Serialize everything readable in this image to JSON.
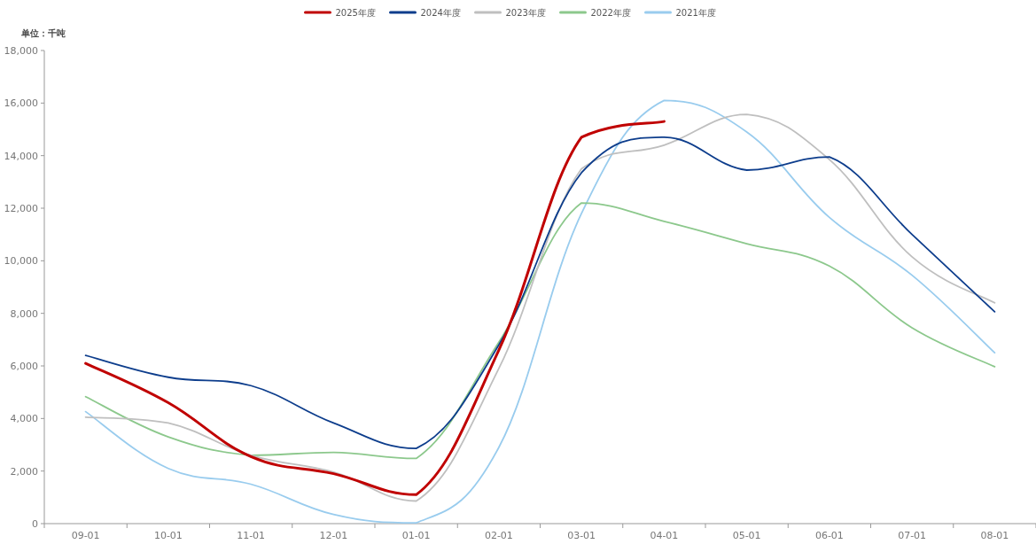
{
  "chart_data": {
    "type": "line",
    "ylabel": "单位：千吨",
    "legend": "top",
    "grid": false,
    "marker": "none",
    "line_style": "solid",
    "categories": [
      "09-01",
      "10-01",
      "11-01",
      "12-01",
      "01-01",
      "02-01",
      "03-01",
      "04-01",
      "05-01",
      "06-01",
      "07-01",
      "08-01"
    ],
    "ylim": [
      0,
      18000
    ],
    "yticks": [
      0,
      {
        "value": 2000,
        "label": "2,000"
      },
      {
        "value": 4000,
        "label": "4,000"
      },
      {
        "value": 6000,
        "label": "6,000"
      },
      {
        "value": 8000,
        "label": "8,000"
      },
      {
        "value": 10000,
        "label": "10,000"
      },
      {
        "value": 12000,
        "label": "12,000"
      },
      {
        "value": 14000,
        "label": "14,000"
      },
      {
        "value": 16000,
        "label": "16,000"
      },
      {
        "value": 18000,
        "label": "18,000"
      }
    ],
    "series": [
      {
        "name": "2025年度",
        "color": "#c00000",
        "values": [
          6100,
          4600,
          2550,
          1900,
          1100,
          6600,
          14700,
          15300,
          null,
          null,
          null,
          null
        ]
      },
      {
        "name": "2024年度",
        "color": "#0d3d8c",
        "values": [
          6400,
          5570,
          5250,
          3830,
          2860,
          6800,
          13350,
          14700,
          13450,
          13950,
          11000,
          8060
        ]
      },
      {
        "name": "2023年度",
        "color": "#bfbfbf",
        "values": [
          4050,
          3830,
          2600,
          1960,
          860,
          5900,
          13500,
          14400,
          15570,
          13850,
          10150,
          8400
        ]
      },
      {
        "name": "2022年度",
        "color": "#8cc88c",
        "values": [
          4830,
          3300,
          2600,
          2710,
          2480,
          6900,
          12200,
          11500,
          10650,
          9800,
          7450,
          5970
        ]
      },
      {
        "name": "2021年度",
        "color": "#99ccee",
        "values": [
          4260,
          2100,
          1500,
          350,
          30,
          2900,
          11800,
          16100,
          14900,
          11650,
          9450,
          6500
        ]
      }
    ]
  }
}
